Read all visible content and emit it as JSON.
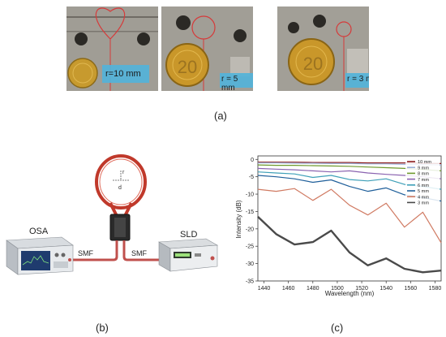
{
  "panel_a": {
    "label": "(a)",
    "photos": [
      {
        "radius_label": "r=10 mm"
      },
      {
        "radius_label": "r = 5 mm"
      },
      {
        "radius_label": "r = 3 mm"
      }
    ]
  },
  "panel_b": {
    "label": "(b)",
    "osa_label": "OSA",
    "sld_label": "SLD",
    "fiber_left": "SMF",
    "fiber_right": "SMF",
    "loop_r": "r",
    "loop_d": "d",
    "colors": {
      "fiber": "#c0504d",
      "loop": "#c0392b"
    }
  },
  "panel_c": {
    "label": "(c)"
  },
  "chart_data": {
    "type": "line",
    "xlabel": "Wavelength (nm)",
    "ylabel": "Intensity (dB)",
    "xlim": [
      1435,
      1585
    ],
    "ylim": [
      -35,
      1
    ],
    "xticks": [
      1440,
      1460,
      1480,
      1500,
      1520,
      1540,
      1560,
      1580
    ],
    "yticks": [
      0,
      -5,
      -10,
      -15,
      -20,
      -25,
      -30,
      -35
    ],
    "legend_position": "top-right",
    "x": [
      1435,
      1450,
      1465,
      1480,
      1495,
      1510,
      1525,
      1540,
      1555,
      1570,
      1585
    ],
    "series": [
      {
        "name": "10 mm",
        "color": "#8b1a1a",
        "values": [
          -0.8,
          -0.8,
          -0.8,
          -0.9,
          -0.9,
          -0.9,
          -1.0,
          -1.0,
          -1.0,
          -1.1,
          -1.2
        ]
      },
      {
        "name": "9 mm",
        "color": "#9ab0d8",
        "values": [
          -1.0,
          -1.0,
          -1.1,
          -1.1,
          -1.2,
          -1.2,
          -1.3,
          -1.3,
          -1.4,
          -1.5,
          -1.6
        ]
      },
      {
        "name": "8 mm",
        "color": "#6e9a2e",
        "values": [
          -1.6,
          -1.7,
          -1.7,
          -1.8,
          -1.9,
          -2.0,
          -2.2,
          -2.4,
          -2.6,
          -2.9,
          -3.3
        ]
      },
      {
        "name": "7 mm",
        "color": "#8a63b0",
        "values": [
          -2.6,
          -2.8,
          -3.0,
          -3.3,
          -3.6,
          -3.3,
          -3.9,
          -4.3,
          -4.6,
          -5.0,
          -5.6
        ]
      },
      {
        "name": "6 mm",
        "color": "#3fa0b8",
        "values": [
          -3.6,
          -3.9,
          -4.2,
          -5.2,
          -4.6,
          -5.8,
          -6.2,
          -5.6,
          -7.2,
          -7.8,
          -8.6
        ]
      },
      {
        "name": "5 mm",
        "color": "#1f5f9a",
        "values": [
          -4.6,
          -5.0,
          -5.6,
          -6.6,
          -5.9,
          -7.8,
          -9.2,
          -8.2,
          -10.2,
          -11.0,
          -12.0
        ]
      },
      {
        "name": "4 mm",
        "color": "#d07a62",
        "values": [
          -8.6,
          -9.2,
          -8.4,
          -11.8,
          -8.6,
          -13.2,
          -16.0,
          -12.6,
          -19.5,
          -15.2,
          -24.0
        ]
      },
      {
        "name": "3 mm",
        "color": "#4a4a4a",
        "values": [
          -16.5,
          -21.5,
          -24.5,
          -23.8,
          -20.5,
          -26.8,
          -30.5,
          -28.5,
          -31.5,
          -32.5,
          -32.0
        ]
      }
    ]
  }
}
